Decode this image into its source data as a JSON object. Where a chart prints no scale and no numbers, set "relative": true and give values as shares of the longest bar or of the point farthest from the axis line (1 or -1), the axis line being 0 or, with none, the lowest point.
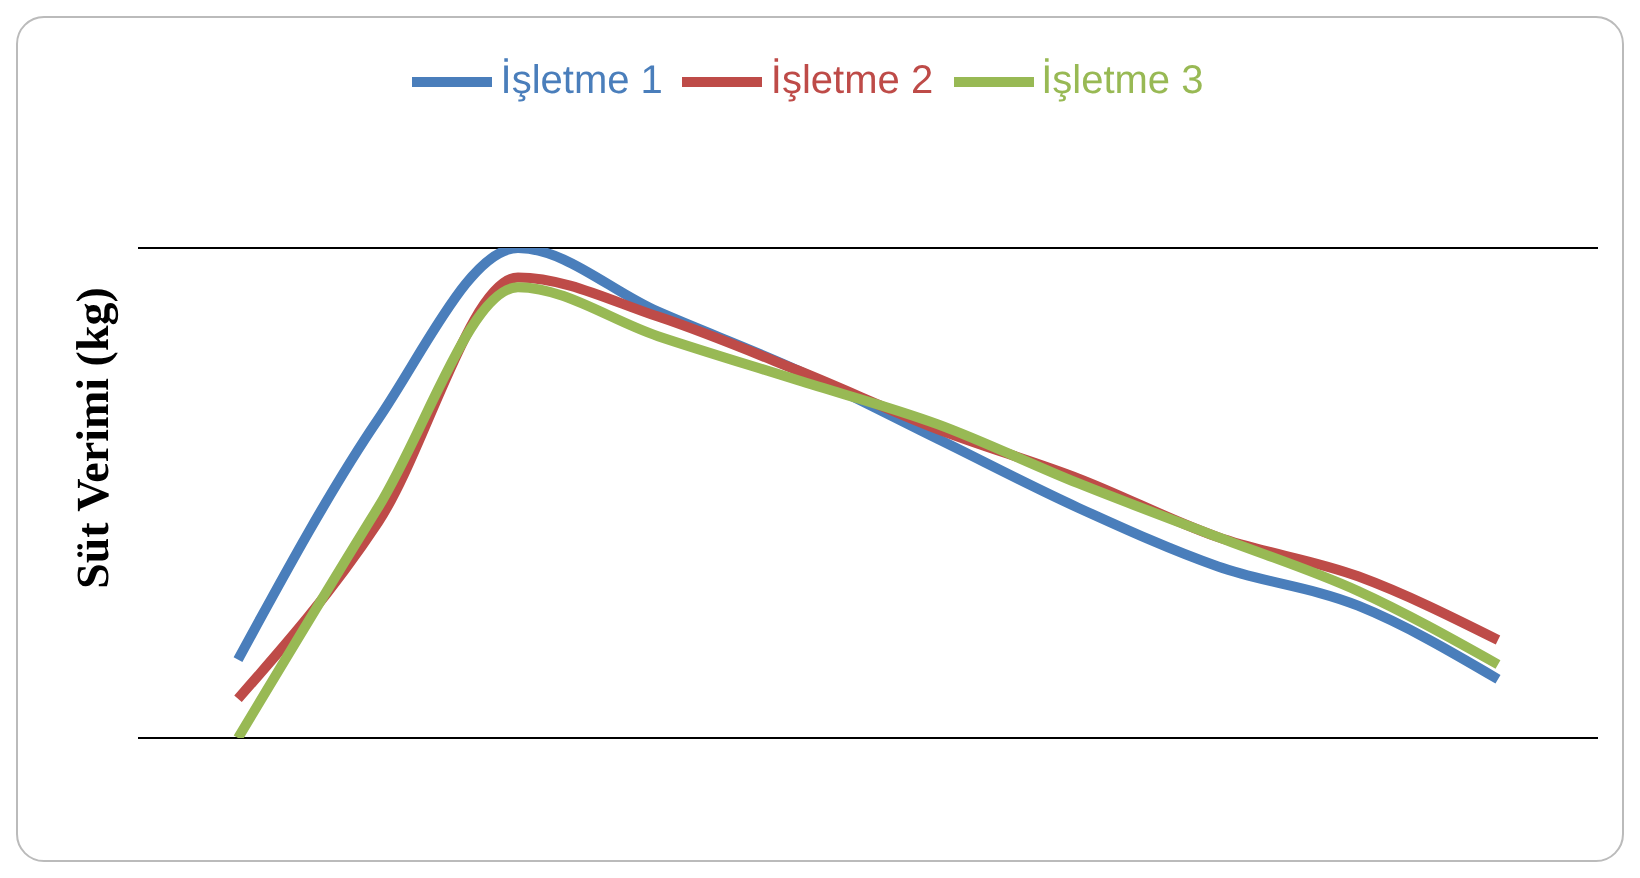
{
  "chart_data": {
    "type": "line",
    "ylabel": "Süt Verimi (kg)",
    "relative": true,
    "grid": "y",
    "legend": "top",
    "marker": "none",
    "line_style": "solid",
    "categories": [
      null,
      null,
      null,
      null,
      null,
      null,
      null,
      null,
      null,
      null
    ],
    "series": [
      {
        "name": "İşletme 1",
        "color": "#4a7ebb",
        "values": [
          0.16,
          0.65,
          1.0,
          0.87,
          0.75,
          0.61,
          0.47,
          0.35,
          0.27,
          0.12
        ]
      },
      {
        "name": "İşletme 2",
        "color": "#be4b48",
        "values": [
          0.08,
          0.44,
          0.94,
          0.86,
          0.75,
          0.63,
          0.53,
          0.41,
          0.33,
          0.2
        ]
      },
      {
        "name": "İşletme 3",
        "color": "#98b954",
        "values": [
          0,
          0.47,
          0.92,
          0.82,
          0.73,
          0.64,
          0.52,
          0.41,
          0.3,
          0.15
        ]
      }
    ]
  }
}
